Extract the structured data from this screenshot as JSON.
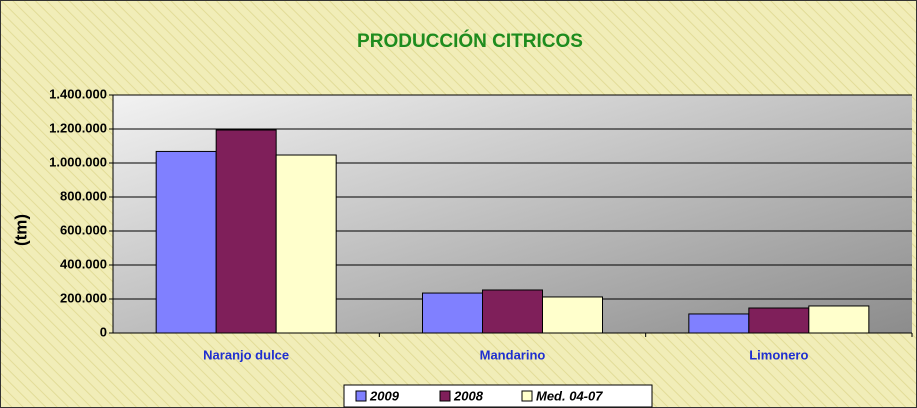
{
  "chart_data": {
    "type": "bar",
    "title": "PRODUCCIÓN  CITRICOS",
    "y_label": "(tm)",
    "categories": [
      "Naranjo dulce",
      "Mandarino",
      "Limonero"
    ],
    "series": [
      {
        "name": "2009",
        "color": "#8080ff",
        "values": [
          1068000,
          235000,
          112000
        ]
      },
      {
        "name": "2008",
        "color": "#7f1f5a",
        "values": [
          1194000,
          253000,
          147000
        ]
      },
      {
        "name": "Med. 04-07",
        "color": "#ffffcc",
        "values": [
          1047000,
          212000,
          159000
        ]
      }
    ],
    "ylim": [
      0,
      1400000
    ],
    "yticks": [
      0,
      {
        "value": 200000,
        "label": "200.000"
      },
      {
        "value": 400000,
        "label": "400.000"
      },
      {
        "value": 600000,
        "label": "600.000"
      },
      {
        "value": 800000,
        "label": "800.000"
      },
      {
        "value": 1000000,
        "label": "1.000.000"
      },
      {
        "value": 1200000,
        "label": "1.200.000"
      },
      {
        "value": 1400000,
        "label": "1.400.000"
      }
    ],
    "grid": true,
    "legend": "bottom"
  }
}
